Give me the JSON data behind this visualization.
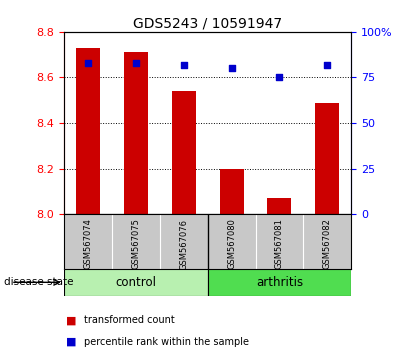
{
  "title": "GDS5243 / 10591947",
  "samples": [
    "GSM567074",
    "GSM567075",
    "GSM567076",
    "GSM567080",
    "GSM567081",
    "GSM567082"
  ],
  "bar_values": [
    8.73,
    8.71,
    8.54,
    8.2,
    8.07,
    8.49
  ],
  "percentile_values": [
    83,
    83,
    82,
    80,
    75,
    82
  ],
  "ylim_left": [
    8.0,
    8.8
  ],
  "ylim_right": [
    0,
    100
  ],
  "yticks_left": [
    8.0,
    8.2,
    8.4,
    8.6,
    8.8
  ],
  "ytick_labels_right": [
    "0",
    "25",
    "50",
    "75",
    "100%"
  ],
  "bar_color": "#cc0000",
  "point_color": "#0000cc",
  "bar_width": 0.5,
  "control_color": "#b8f0b0",
  "arthritis_color": "#50dd50",
  "tick_area_bg": "#c8c8c8",
  "disease_state_label": "disease state",
  "legend_bar_label": "transformed count",
  "legend_point_label": "percentile rank within the sample",
  "title_fontsize": 10,
  "grid_yticks": [
    8.2,
    8.4,
    8.6
  ]
}
